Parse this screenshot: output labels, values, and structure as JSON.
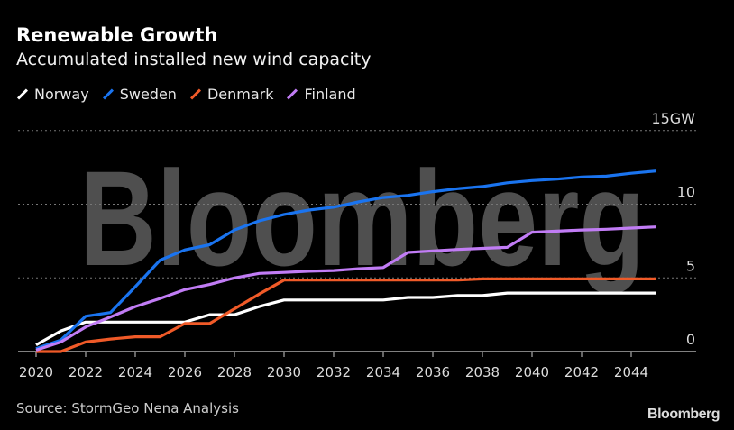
{
  "chart_data": {
    "type": "line",
    "title": "Renewable Growth",
    "subtitle": "Accumulated installed new wind capacity",
    "source": "Source: StormGeo Nena Analysis",
    "logo_text": "Bloomberg",
    "watermark_text": "Bloomberg",
    "legend_position": "top-left",
    "grid": true,
    "x": [
      2020,
      2021,
      2022,
      2023,
      2024,
      2025,
      2026,
      2027,
      2028,
      2029,
      2030,
      2031,
      2032,
      2033,
      2034,
      2035,
      2036,
      2037,
      2038,
      2039,
      2040,
      2041,
      2042,
      2043,
      2044,
      2045
    ],
    "xlim": [
      2020,
      2045
    ],
    "x_tick_labels": [
      "2020",
      "2022",
      "2024",
      "2026",
      "2028",
      "2030",
      "2032",
      "2034",
      "2036",
      "2038",
      "2040",
      "2042",
      "2044"
    ],
    "ylim": [
      0,
      15
    ],
    "y_ticks": [
      0,
      5,
      10,
      15
    ],
    "y_tick_labels": [
      "0",
      "5",
      "10",
      "15GW"
    ],
    "series": [
      {
        "name": "Norway",
        "color": "#ffffff",
        "values": [
          0.45,
          1.4,
          2.0,
          2.0,
          2.0,
          2.0,
          2.0,
          2.5,
          2.5,
          3.05,
          3.5,
          3.5,
          3.5,
          3.5,
          3.5,
          3.67,
          3.67,
          3.8,
          3.8,
          3.97,
          3.97,
          3.97,
          3.97,
          3.97,
          3.97,
          3.97
        ]
      },
      {
        "name": "Sweden",
        "color": "#1a74f0",
        "values": [
          0.2,
          0.78,
          2.4,
          2.65,
          4.4,
          6.2,
          6.9,
          7.25,
          8.25,
          8.87,
          9.3,
          9.6,
          9.8,
          10.15,
          10.45,
          10.6,
          10.85,
          11.05,
          11.2,
          11.45,
          11.6,
          11.7,
          11.85,
          11.9,
          12.1,
          12.25
        ]
      },
      {
        "name": "Denmark",
        "color": "#f05a28",
        "values": [
          0.0,
          0.0,
          0.65,
          0.85,
          1.0,
          1.0,
          1.9,
          1.9,
          2.9,
          3.9,
          4.85,
          4.85,
          4.85,
          4.85,
          4.85,
          4.85,
          4.85,
          4.85,
          4.93,
          4.93,
          4.93,
          4.93,
          4.93,
          4.93,
          4.93,
          4.93
        ]
      },
      {
        "name": "Finland",
        "color": "#c17cf5",
        "values": [
          0.1,
          0.65,
          1.67,
          2.35,
          3.05,
          3.6,
          4.2,
          4.55,
          5.0,
          5.3,
          5.37,
          5.45,
          5.5,
          5.62,
          5.7,
          6.73,
          6.83,
          6.93,
          7.0,
          7.07,
          8.1,
          8.17,
          8.25,
          8.3,
          8.38,
          8.46
        ]
      }
    ]
  }
}
